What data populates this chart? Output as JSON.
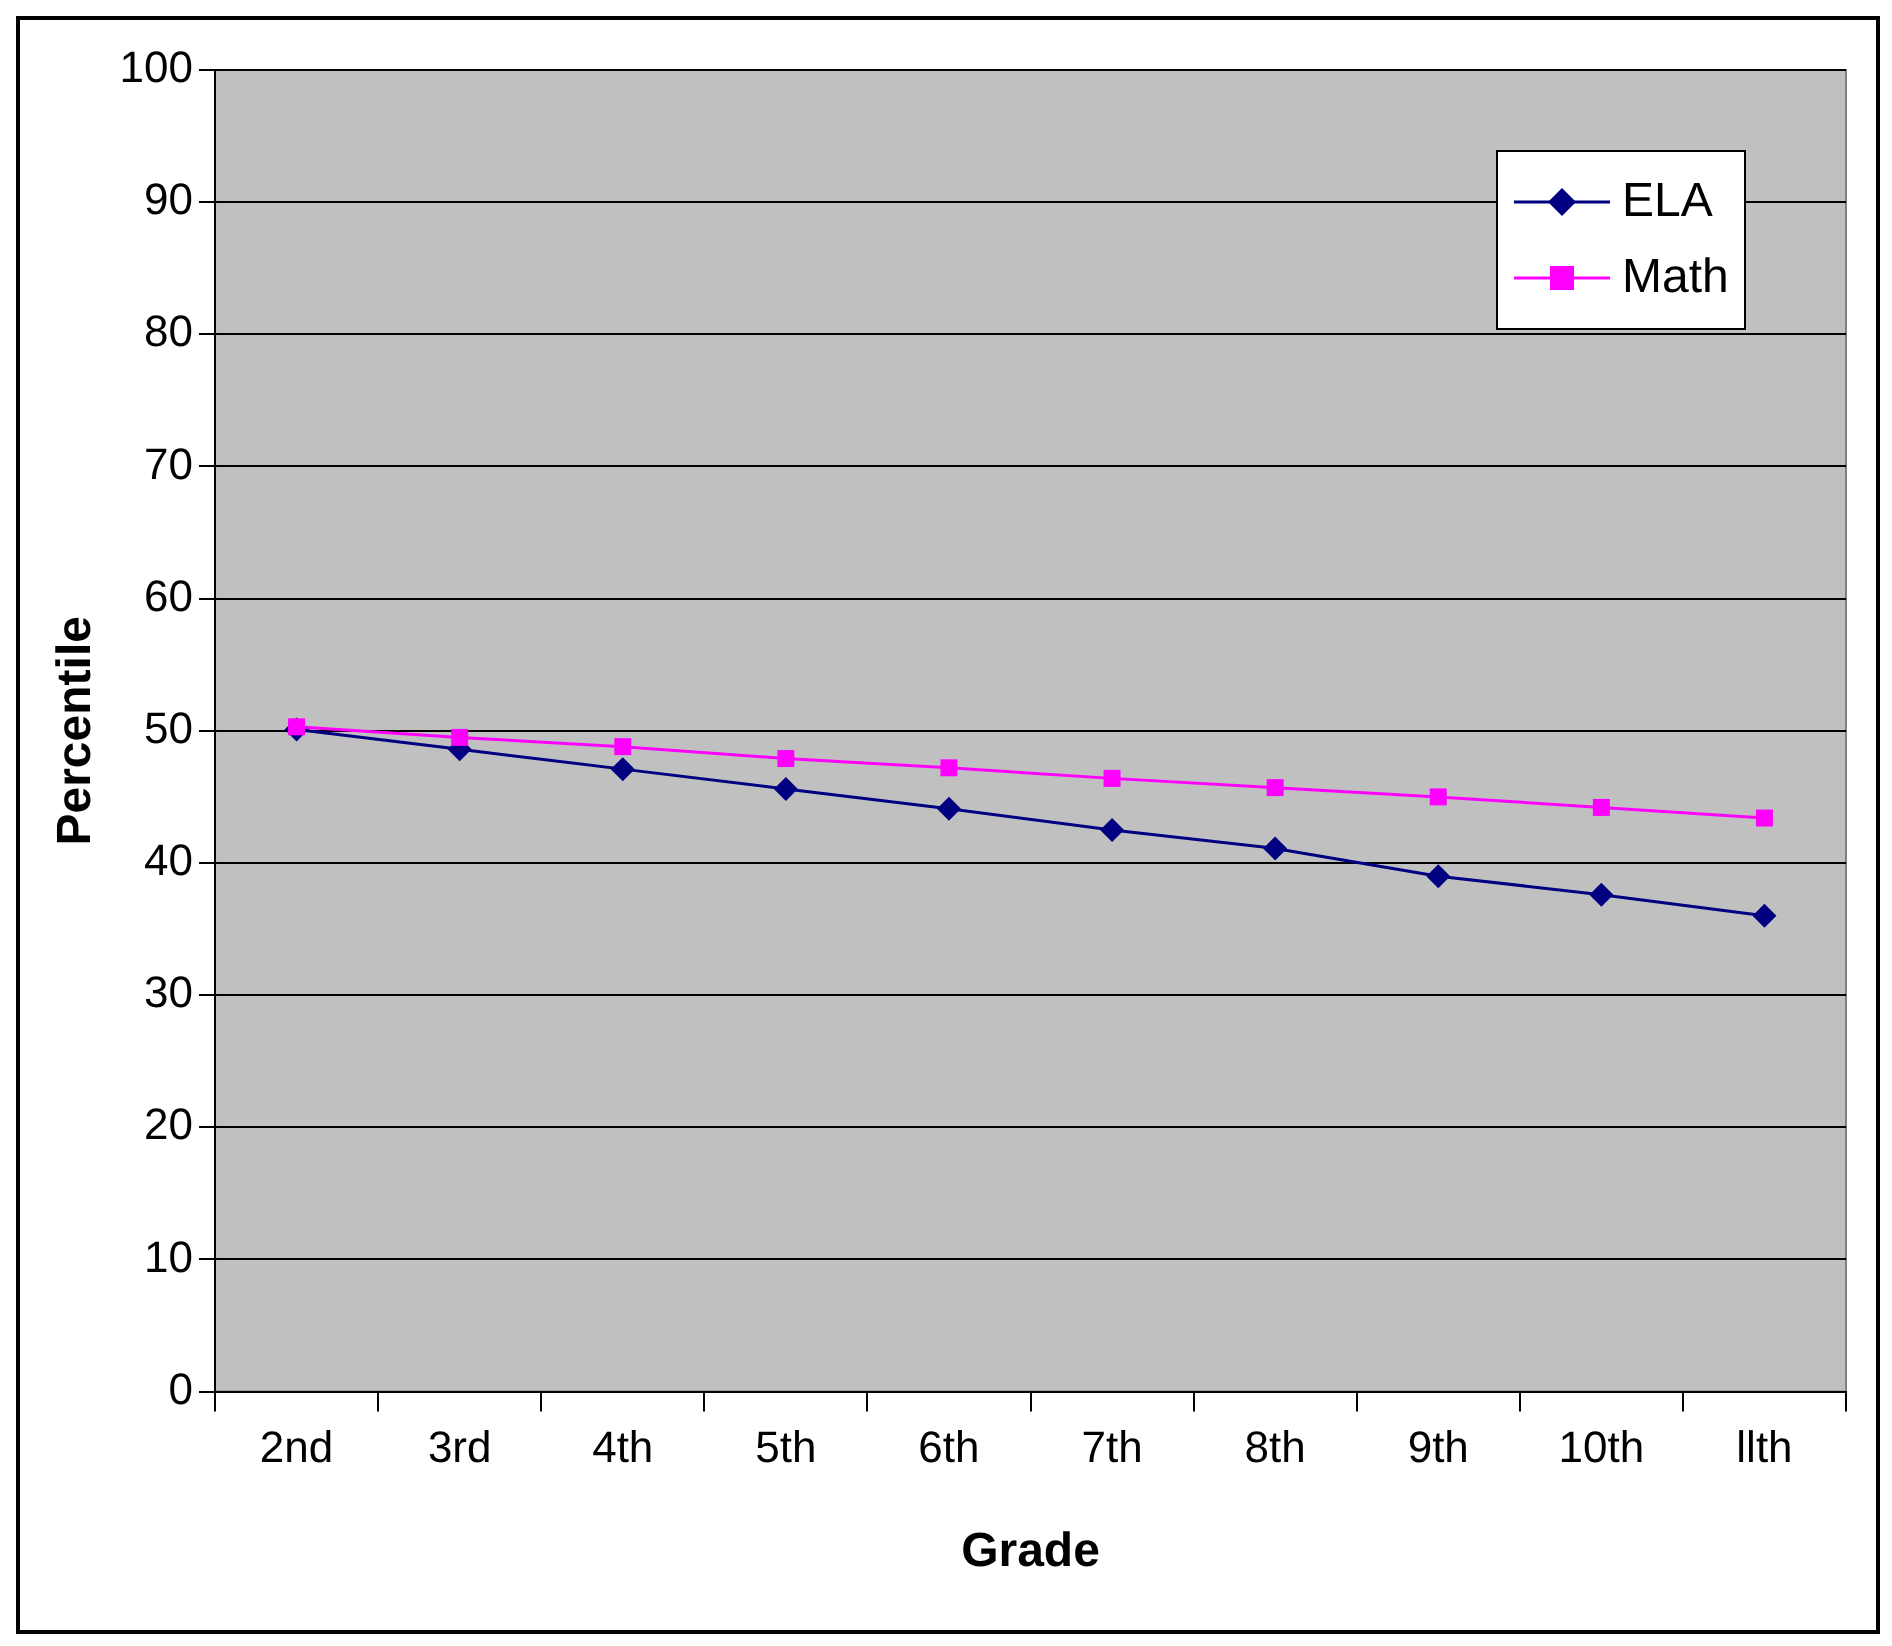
{
  "chart_data": {
    "type": "line",
    "xlabel": "Grade",
    "ylabel": "Percentile",
    "categories": [
      "2nd",
      "3rd",
      "4th",
      "5th",
      "6th",
      "7th",
      "8th",
      "9th",
      "10th",
      "llth"
    ],
    "series": [
      {
        "name": "ELA",
        "color": "#000080",
        "marker": "diamond",
        "values": [
          50.1,
          48.6,
          47.1,
          45.6,
          44.1,
          42.5,
          41.1,
          39.0,
          37.6,
          36.0
        ]
      },
      {
        "name": "Math",
        "color": "#ff00ff",
        "marker": "square",
        "values": [
          50.3,
          49.5,
          48.8,
          47.9,
          47.2,
          46.4,
          45.7,
          45.0,
          44.2,
          43.4
        ]
      }
    ],
    "ylim": [
      0,
      100
    ],
    "yticks": [
      0,
      10,
      20,
      30,
      40,
      50,
      60,
      70,
      80,
      90,
      100
    ],
    "grid": "y",
    "legend": "top right"
  }
}
